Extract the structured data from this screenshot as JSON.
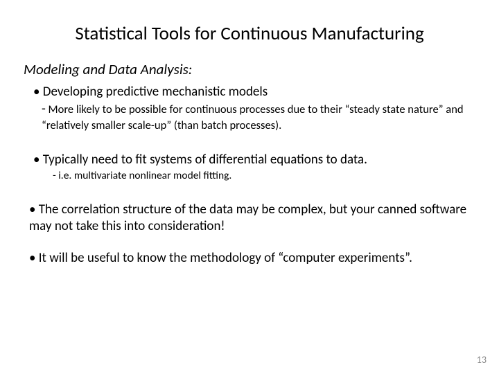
{
  "title": "Statistical Tools for Continuous Manufacturing",
  "subtitle": "Modeling and Data Analysis:",
  "bullet1": "Developing predictive mechanistic models",
  "sub1_dash": "-",
  "sub1_text": " More likely to be possible for continuous processes due to their “steady state nature” and “relatively smaller scale-up” (than batch processes).",
  "bullet2": "Typically need to fit systems of differential equations to data.",
  "sub2": "- i.e. multivariate nonlinear model fitting.",
  "bullet3": "The correlation structure of the data may be complex, but your canned software may not take this into consideration!",
  "bullet4": "It will be useful to know the methodology of “computer experiments”.",
  "page_number": "13",
  "colors": {
    "background": "#ffffff",
    "text": "#000000",
    "pagenum": "#8a8a8a"
  }
}
